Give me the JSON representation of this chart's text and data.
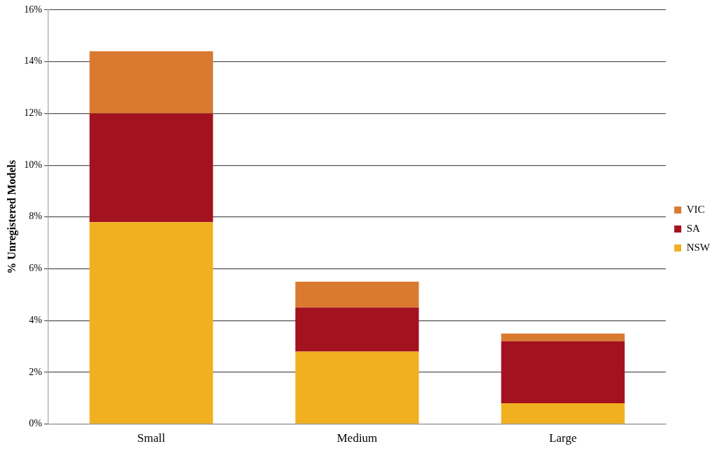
{
  "chart_data": {
    "type": "bar",
    "ylabel": "% Unregistered Models",
    "categories": [
      "Small",
      "Medium",
      "Large"
    ],
    "stacked": true,
    "series": [
      {
        "name": "NSW",
        "color": "#f0b020",
        "values": [
          7.8,
          2.8,
          0.8
        ]
      },
      {
        "name": "SA",
        "color": "#a3121f",
        "values": [
          4.2,
          1.7,
          2.4
        ]
      },
      {
        "name": "VIC",
        "color": "#d97a30",
        "values": [
          2.4,
          1.0,
          0.3
        ]
      }
    ],
    "ylim": [
      0,
      16
    ],
    "yticks": [
      {
        "value": 0,
        "label": "0%"
      },
      {
        "value": 2,
        "label": "2%"
      },
      {
        "value": 4,
        "label": "4%"
      },
      {
        "value": 6,
        "label": "6%"
      },
      {
        "value": 8,
        "label": "8%"
      },
      {
        "value": 10,
        "label": "10%"
      },
      {
        "value": 12,
        "label": "12%"
      },
      {
        "value": 14,
        "label": "14%"
      },
      {
        "value": 16,
        "label": "16%"
      }
    ],
    "grid": "y",
    "legend": "right"
  }
}
